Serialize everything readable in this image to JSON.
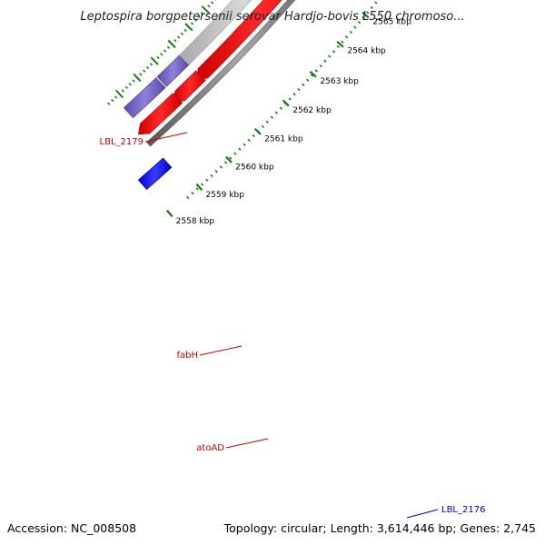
{
  "title": "Leptospira borgpetersenii serovar Hardjo-bovis L550 chromoso...",
  "footer": {
    "accession": "Accession: NC_008508",
    "summary": "Topology: circular; Length: 3,614,446 bp; Genes: 2,745"
  },
  "ticks": [
    "2565 kbp",
    "2564 kbp",
    "2563 kbp",
    "2562 kbp",
    "2561 kbp",
    "2560 kbp",
    "2559 kbp",
    "2558 kbp"
  ],
  "gene_labels": {
    "lbl_2179": "LBL_2179",
    "fabh": "fabH",
    "atoad": "atoAD",
    "lbl_2176": "LBL_2176"
  },
  "colors": {
    "forward_gene": "#ff0000",
    "reverse_gene": "#c0c0c0",
    "cog_feature": "#7b68c8",
    "blue_feature": "#0000ff",
    "backbone": "#808080",
    "tick": "#1a7a1a",
    "label_red": "#cc0000",
    "label_blue": "#0000cc"
  }
}
